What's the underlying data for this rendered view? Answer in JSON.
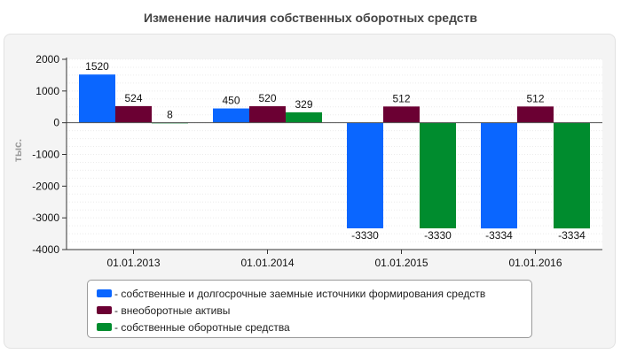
{
  "chart_data": {
    "type": "bar",
    "title": "Изменение наличия собственных оборотных средств",
    "ylabel": "тыс.",
    "xlabel": "",
    "ylim": [
      -4000,
      2000
    ],
    "yticks": [
      2000,
      1000,
      0,
      -1000,
      -2000,
      -3000,
      -4000
    ],
    "categories": [
      "01.01.2013",
      "01.01.2014",
      "01.01.2015",
      "01.01.2016"
    ],
    "series": [
      {
        "name": "- собственные и долгосрочные заемные источники формирования средств",
        "color": "#0a66ff",
        "values": [
          1520,
          450,
          -3330,
          -3334
        ]
      },
      {
        "name": "- внеоборотные активы",
        "color": "#6b0033",
        "values": [
          524,
          520,
          512,
          512
        ]
      },
      {
        "name": "- собственные оборотные средства",
        "color": "#008c2e",
        "values": [
          8,
          329,
          -3330,
          -3334
        ]
      }
    ],
    "data_labels": [
      [
        "1520",
        "524",
        "8"
      ],
      [
        "450",
        "520",
        "329"
      ],
      [
        "-3330",
        "512",
        "-3330"
      ],
      [
        "-3334",
        "512",
        "-3334"
      ]
    ],
    "grid": true,
    "legend_position": "bottom-center"
  }
}
